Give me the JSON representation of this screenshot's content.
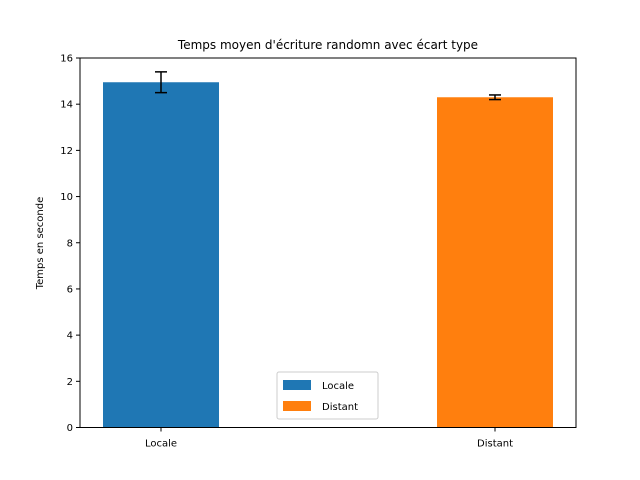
{
  "chart_data": {
    "type": "bar",
    "title": "Temps moyen d'écriture randomn avec écart type",
    "xlabel": "",
    "ylabel": "Temps en seconde",
    "ylim": [
      0,
      16
    ],
    "yticks": [
      "0",
      "2",
      "4",
      "6",
      "8",
      "10",
      "12",
      "14",
      "16"
    ],
    "categories": [
      "Locale",
      "Distant"
    ],
    "values": [
      14.95,
      14.3
    ],
    "errors": [
      0.45,
      0.1
    ],
    "colors": [
      "#1f77b4",
      "#ff7f0e"
    ],
    "grid": false,
    "legend": {
      "placement": "lower center",
      "entries": [
        {
          "label": "Locale",
          "color": "#1f77b4"
        },
        {
          "label": "Distant",
          "color": "#ff7f0e"
        }
      ]
    }
  }
}
